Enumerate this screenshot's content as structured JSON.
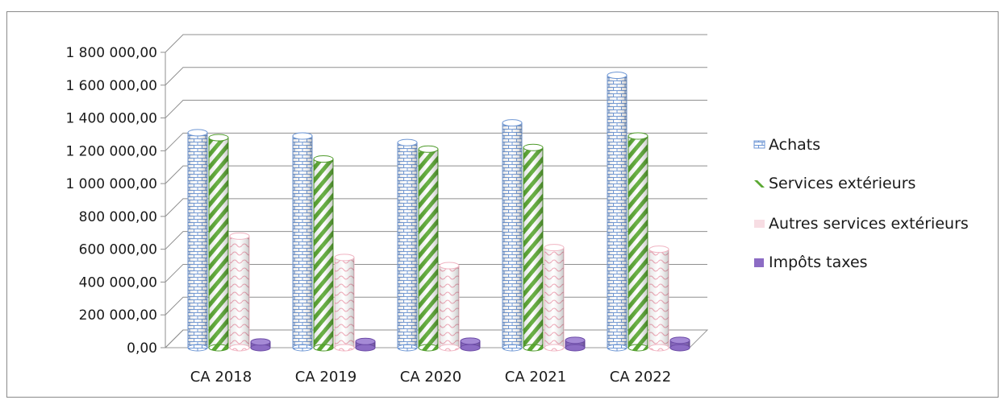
{
  "chart_data": {
    "type": "bar",
    "style": "3d-clustered-cylinder",
    "title": "",
    "xlabel": "",
    "ylabel": "",
    "categories": [
      "CA 2018",
      "CA 2019",
      "CA 2020",
      "CA 2021",
      "CA 2022"
    ],
    "y_ticks": [
      "0,00",
      "200 000,00",
      "400 000,00",
      "600 000,00",
      "800 000,00",
      "1 000 000,00",
      "1 200 000,00",
      "1 400 000,00",
      "1 600 000,00",
      "1 800 000,00"
    ],
    "ylim": [
      0,
      1800000
    ],
    "grid": true,
    "legend_position": "right",
    "series": [
      {
        "name": "Achats",
        "color": "#9db8e0",
        "pattern": "brick",
        "values": [
          1310000,
          1290000,
          1250000,
          1370000,
          1660000
        ]
      },
      {
        "name": "Services extérieurs",
        "color": "#5aa832",
        "pattern": "diagonal-stripes",
        "values": [
          1280000,
          1150000,
          1210000,
          1220000,
          1290000
        ]
      },
      {
        "name": "Autres services extérieurs",
        "color": "#f5b8c4",
        "pattern": "wave",
        "values": [
          680000,
          550000,
          500000,
          610000,
          600000
        ]
      },
      {
        "name": "Impôts taxes",
        "color": "#8c6cc4",
        "pattern": "solid",
        "values": [
          35000,
          38000,
          40000,
          45000,
          45000
        ]
      }
    ]
  }
}
